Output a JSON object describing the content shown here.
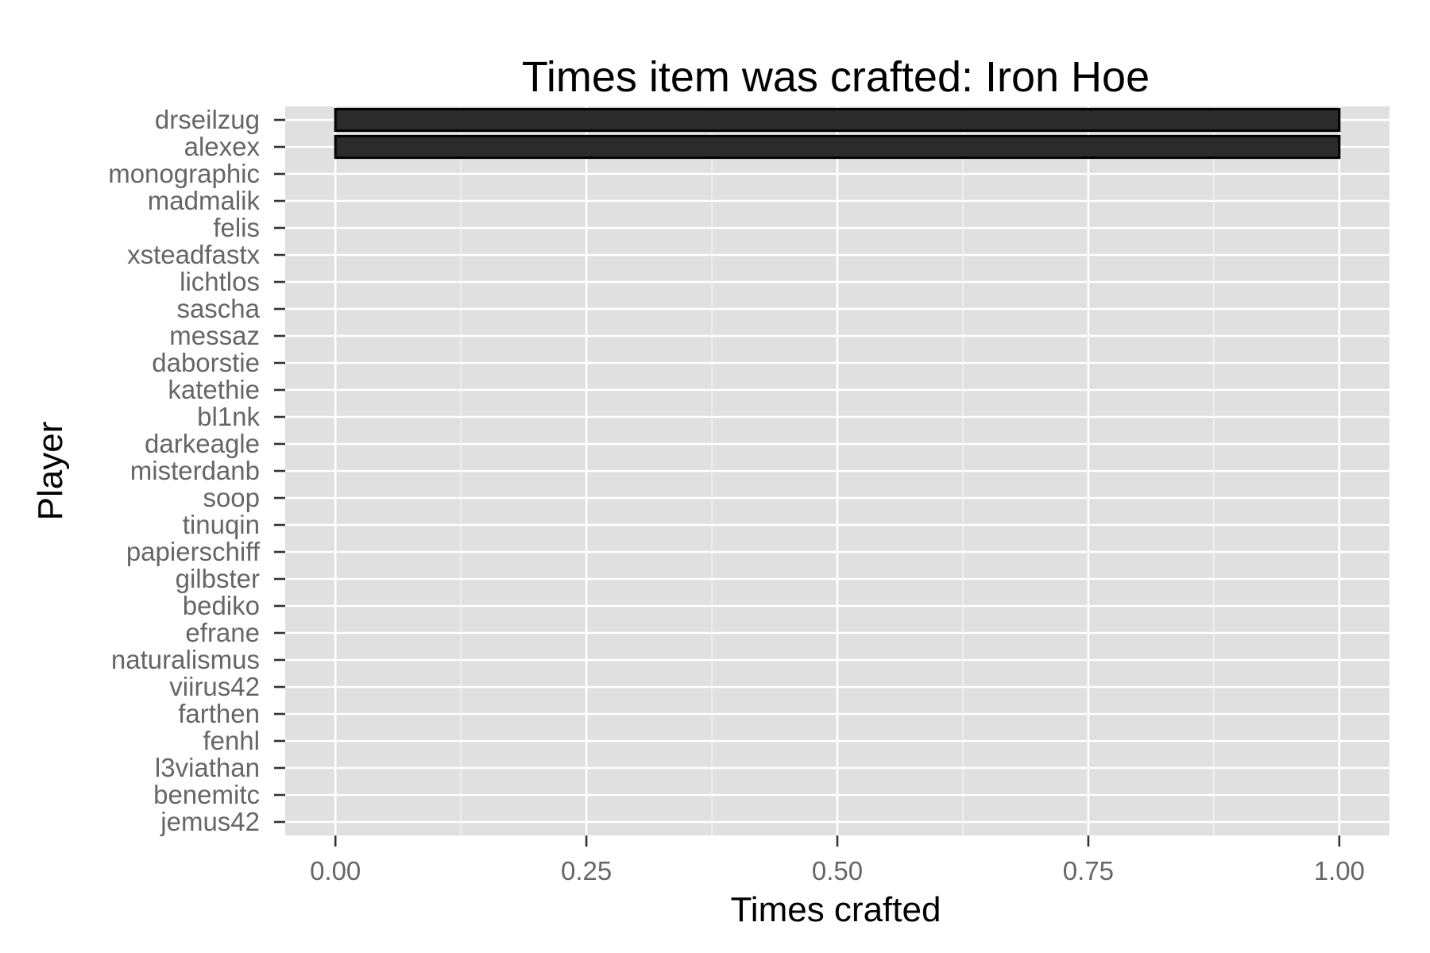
{
  "chart_data": {
    "type": "bar",
    "orientation": "horizontal",
    "title": "Times item was crafted: Iron Hoe",
    "xlabel": "Times crafted",
    "ylabel": "Player",
    "xlim": [
      -0.05,
      1.05
    ],
    "x_ticks": [
      0.0,
      0.25,
      0.5,
      0.75,
      1.0
    ],
    "x_tick_labels": [
      "0.00",
      "0.25",
      "0.50",
      "0.75",
      "1.00"
    ],
    "grid": true,
    "legend": "none",
    "colors": {
      "panel": "#e0e0e0",
      "grid": "#ffffff",
      "bar_fill": "#2b2b2b",
      "bar_stroke": "#000000",
      "tick_label": "#666666",
      "text": "#000000"
    },
    "categories": [
      "drseilzug",
      "alexex",
      "monographic",
      "madmalik",
      "felis",
      "xsteadfastx",
      "lichtlos",
      "sascha",
      "messaz",
      "daborstie",
      "katethie",
      "bl1nk",
      "darkeagle",
      "misterdanb",
      "soop",
      "tinuqin",
      "papierschiff",
      "gilbster",
      "bediko",
      "efrane",
      "naturalismus",
      "viirus42",
      "farthen",
      "fenhl",
      "l3viathan",
      "benemitc",
      "jemus42"
    ],
    "values": [
      1,
      1,
      0,
      0,
      0,
      0,
      0,
      0,
      0,
      0,
      0,
      0,
      0,
      0,
      0,
      0,
      0,
      0,
      0,
      0,
      0,
      0,
      0,
      0,
      0,
      0,
      0
    ]
  }
}
